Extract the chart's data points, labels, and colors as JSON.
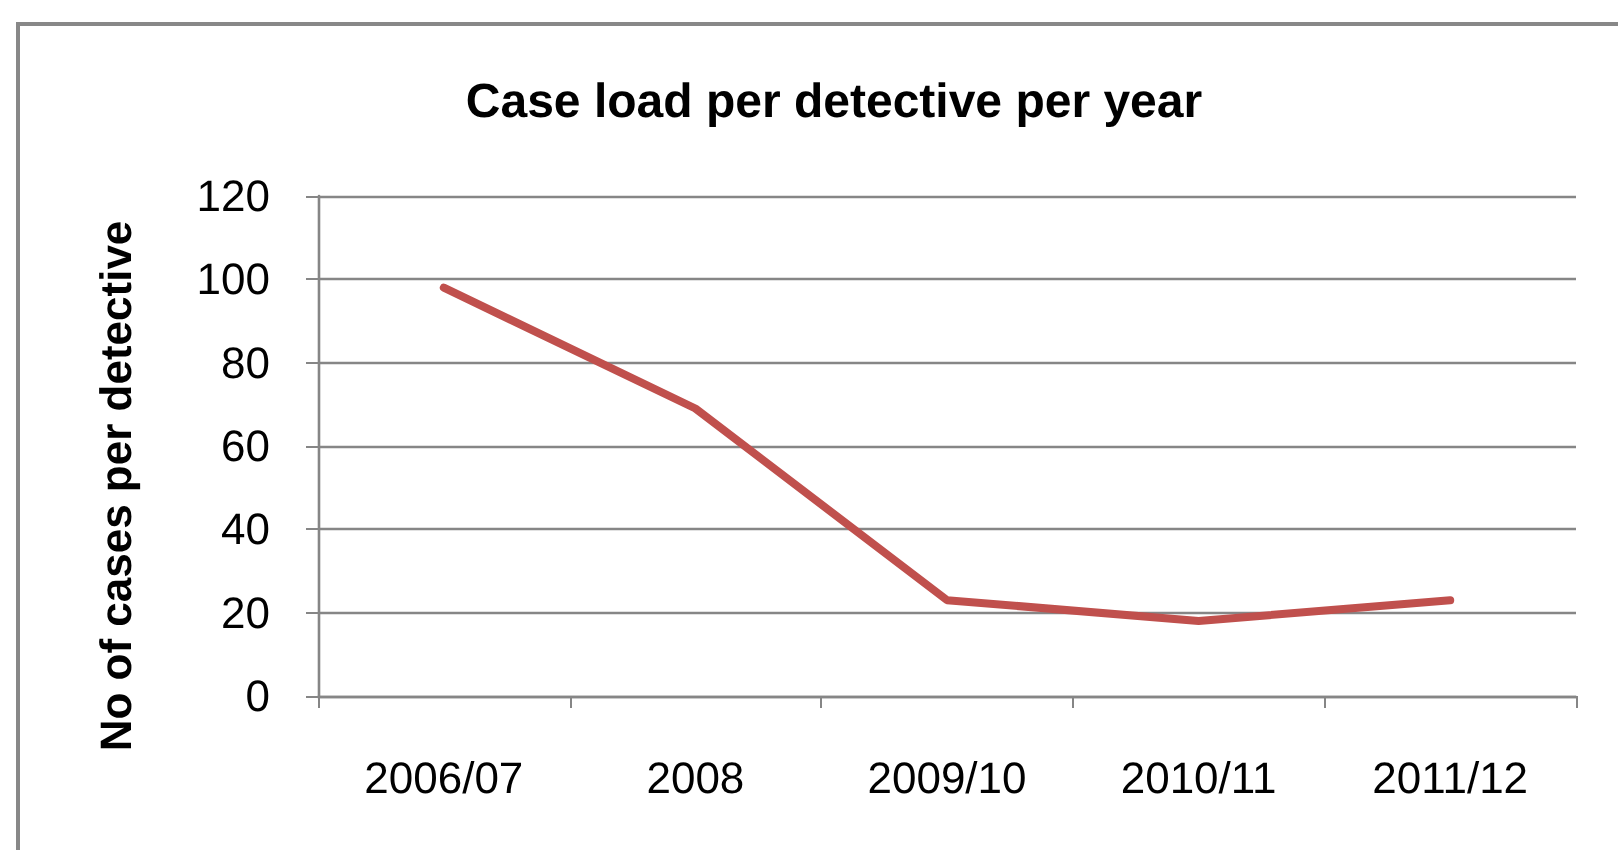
{
  "chart_data": {
    "type": "line",
    "title": "Case load per detective per year",
    "ylabel": "No of cases per detective",
    "categories": [
      "2006/07",
      "2008",
      "2009/10",
      "2010/11",
      "2011/12"
    ],
    "series": [
      {
        "color": "#c0504d",
        "values": [
          98,
          69,
          23,
          18,
          23
        ]
      }
    ],
    "ylim": [
      0,
      120
    ],
    "yticks": [
      0,
      20,
      40,
      60,
      80,
      100,
      120
    ],
    "grid": "y",
    "marker": "none",
    "line_style": "solid"
  }
}
